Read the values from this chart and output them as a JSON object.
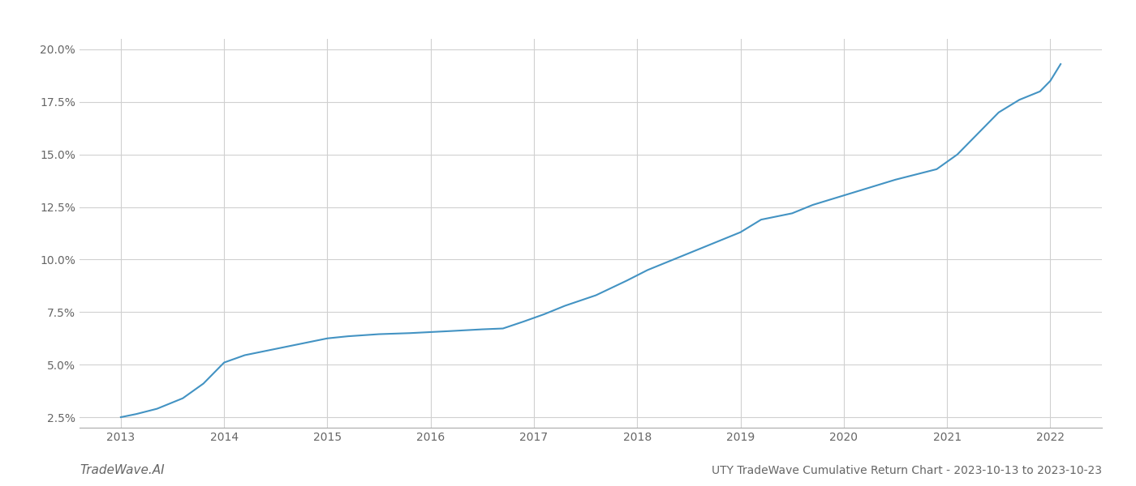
{
  "title": "UTY TradeWave Cumulative Return Chart - 2023-10-13 to 2023-10-23",
  "watermark": "TradeWave.AI",
  "line_color": "#4393c3",
  "background_color": "#ffffff",
  "grid_color": "#d0d0d0",
  "x_values": [
    2013.0,
    2013.15,
    2013.35,
    2013.6,
    2013.8,
    2014.0,
    2014.2,
    2014.5,
    2014.8,
    2015.0,
    2015.2,
    2015.5,
    2015.8,
    2016.0,
    2016.2,
    2016.5,
    2016.7,
    2016.9,
    2017.1,
    2017.3,
    2017.6,
    2017.9,
    2018.1,
    2018.3,
    2018.6,
    2018.8,
    2019.0,
    2019.2,
    2019.5,
    2019.7,
    2019.9,
    2020.1,
    2020.3,
    2020.5,
    2020.7,
    2020.9,
    2021.1,
    2021.3,
    2021.5,
    2021.7,
    2021.9,
    2022.0,
    2022.1
  ],
  "y_values": [
    2.5,
    2.65,
    2.9,
    3.4,
    4.1,
    5.1,
    5.45,
    5.75,
    6.05,
    6.25,
    6.35,
    6.45,
    6.5,
    6.55,
    6.6,
    6.68,
    6.72,
    7.05,
    7.4,
    7.8,
    8.3,
    9.0,
    9.5,
    9.9,
    10.5,
    10.9,
    11.3,
    11.9,
    12.2,
    12.6,
    12.9,
    13.2,
    13.5,
    13.8,
    14.05,
    14.3,
    15.0,
    16.0,
    17.0,
    17.6,
    18.0,
    18.5,
    19.3
  ],
  "ylim": [
    2.0,
    20.5
  ],
  "yticks": [
    2.5,
    5.0,
    7.5,
    10.0,
    12.5,
    15.0,
    17.5,
    20.0
  ],
  "xticks": [
    2013,
    2014,
    2015,
    2016,
    2017,
    2018,
    2019,
    2020,
    2021,
    2022
  ],
  "xlim": [
    2012.6,
    2022.5
  ],
  "line_width": 1.5,
  "title_fontsize": 10,
  "tick_fontsize": 10,
  "watermark_fontsize": 11
}
